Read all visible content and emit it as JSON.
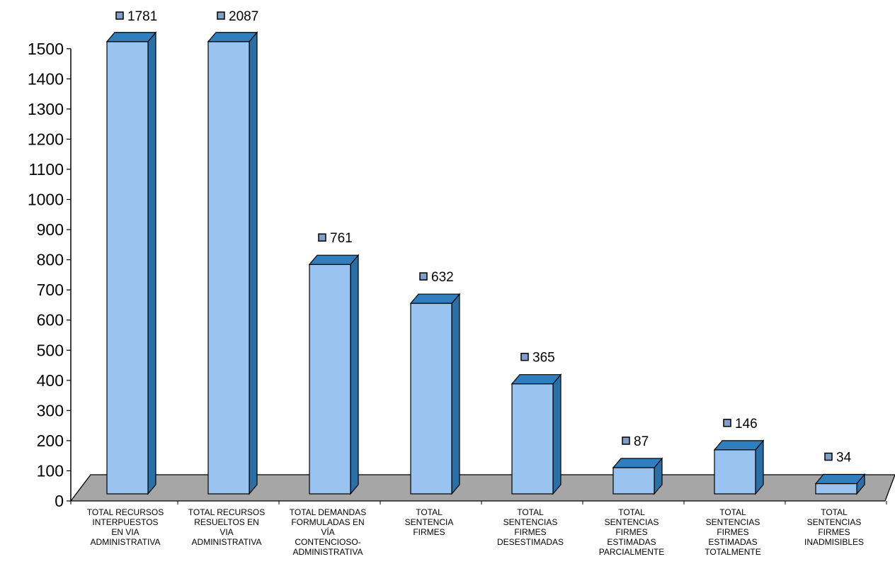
{
  "chart_data": {
    "type": "bar",
    "categories": [
      "TOTAL RECURSOS INTERPUESTOS EN VIA ADMINISTRATIVA",
      "TOTAL RECURSOS RESUELTOS EN VIA ADMINISTRATIVA",
      "TOTAL DEMANDAS FORMULADAS EN VÍA CONTENCIOSO-ADMINISTRATIVA",
      "TOTAL SENTENCIA FIRMES",
      "TOTAL SENTENCIAS FIRMES DESESTIMADAS",
      "TOTAL SENTENCIAS FIRMES ESTIMADAS PARCIALMENTE",
      "TOTAL SENTENCIAS FIRMES ESTIMADAS TOTALMENTE",
      "TOTAL SENTENCIAS FIRMES INADMISIBLES"
    ],
    "category_lines": [
      [
        "TOTAL RECURSOS",
        "INTERPUESTOS",
        "EN VIA",
        "ADMINISTRATIVA"
      ],
      [
        "TOTAL RECURSOS",
        "RESUELTOS EN",
        "VIA",
        "ADMINISTRATIVA"
      ],
      [
        "TOTAL DEMANDAS",
        "FORMULADAS EN",
        "VÍA",
        "CONTENCIOSO-",
        "ADMINISTRATIVA"
      ],
      [
        "TOTAL",
        "SENTENCIA",
        "FIRMES"
      ],
      [
        "TOTAL",
        "SENTENCIAS",
        "FIRMES",
        "DESESTIMADAS"
      ],
      [
        "TOTAL",
        "SENTENCIAS",
        "FIRMES",
        "ESTIMADAS",
        "PARCIALMENTE"
      ],
      [
        "TOTAL",
        "SENTENCIAS",
        "FIRMES",
        "ESTIMADAS",
        "TOTALMENTE"
      ],
      [
        "TOTAL",
        "SENTENCIAS",
        "FIRMES",
        "INADMISIBLES"
      ]
    ],
    "values": [
      1781,
      2087,
      761,
      632,
      365,
      87,
      146,
      34
    ],
    "data_labels": [
      "1781",
      "2087",
      "761",
      "632",
      "365",
      "87",
      "146",
      "34"
    ],
    "yticks": [
      "0",
      "100",
      "200",
      "300",
      "400",
      "500",
      "600",
      "700",
      "800",
      "900",
      "1000",
      "1100",
      "1200",
      "1300",
      "1400",
      "1500"
    ],
    "ylim": [
      0,
      1500
    ],
    "title": "",
    "xlabel": "",
    "ylabel": "",
    "grid": false,
    "style": "3d-column",
    "colors": {
      "bar_front": "#99c4f0",
      "bar_top": "#2f7fbe",
      "bar_side": "#2a6fa6",
      "bar_edge": "#000000",
      "floor": "#a6a6a6",
      "marker": "#7f9fc8"
    }
  }
}
